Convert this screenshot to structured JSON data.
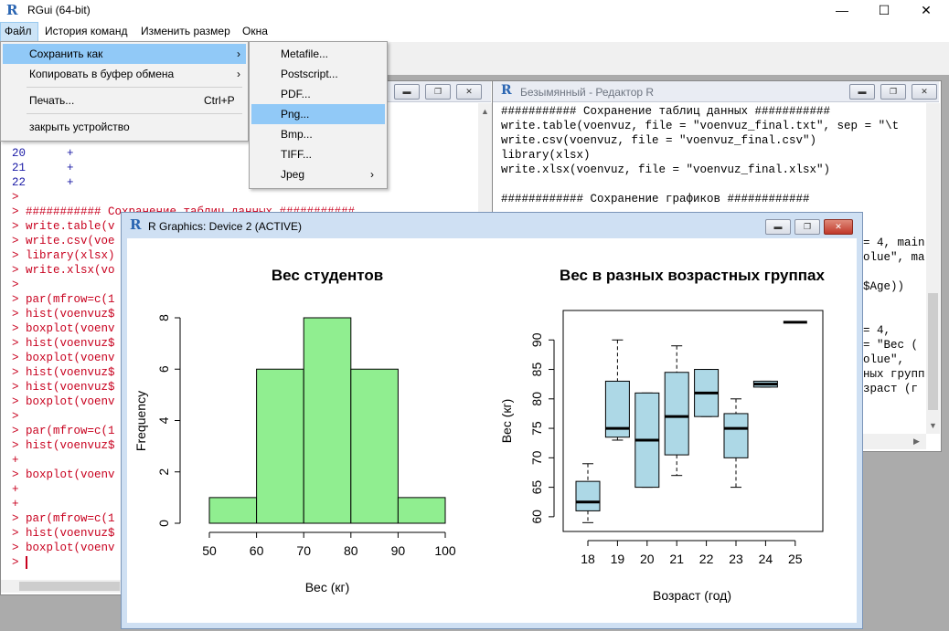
{
  "app": {
    "title": "RGui (64-bit)",
    "logo": "R"
  },
  "window_controls": {
    "minimize": "—",
    "maximize": "☐",
    "close": "✕"
  },
  "menubar": [
    "Файл",
    "История команд",
    "Изменить размер",
    "Окна"
  ],
  "file_menu": {
    "items": [
      {
        "label": "Сохранить как",
        "arrow": "›"
      },
      {
        "label": "Копировать в буфер обмена",
        "arrow": "›"
      },
      {
        "label": "Печать...",
        "shortcut": "Ctrl+P"
      },
      {
        "label": "закрыть устройство"
      }
    ]
  },
  "saveas_menu": {
    "items": [
      "Metafile...",
      "Postscript...",
      "PDF...",
      "Png...",
      "Bmp...",
      "TIFF...",
      "Jpeg"
    ],
    "jpeg_arrow": "›",
    "highlighted": "Png..."
  },
  "console": {
    "lines": [
      {
        "t": "20      +",
        "c": "blue"
      },
      {
        "t": "21      +",
        "c": "blue"
      },
      {
        "t": "22      +",
        "c": "blue"
      },
      {
        "t": ">",
        "c": "red"
      },
      {
        "t": "> ########### Сохранение таблиц данных ###########",
        "c": "red"
      },
      {
        "t": "> write.table(v",
        "c": "red"
      },
      {
        "t": "> write.csv(voe",
        "c": "red"
      },
      {
        "t": "> library(xlsx)",
        "c": "red"
      },
      {
        "t": "> write.xlsx(vo",
        "c": "red"
      },
      {
        "t": ">",
        "c": "red"
      },
      {
        "t": "> par(mfrow=c(1",
        "c": "red"
      },
      {
        "t": "> hist(voenvuz$",
        "c": "red"
      },
      {
        "t": "> boxplot(voenv",
        "c": "red"
      },
      {
        "t": "> hist(voenvuz$",
        "c": "red"
      },
      {
        "t": "> boxplot(voenv",
        "c": "red"
      },
      {
        "t": "> hist(voenvuz$",
        "c": "red"
      },
      {
        "t": "> hist(voenvuz$",
        "c": "red"
      },
      {
        "t": "> boxplot(voenv",
        "c": "red"
      },
      {
        "t": ">",
        "c": "red"
      },
      {
        "t": "> par(mfrow=c(1",
        "c": "red"
      },
      {
        "t": "> hist(voenvuz$",
        "c": "red"
      },
      {
        "t": "+",
        "c": "red"
      },
      {
        "t": "> boxplot(voenv",
        "c": "red"
      },
      {
        "t": "+",
        "c": "red"
      },
      {
        "t": "+",
        "c": "red"
      },
      {
        "t": "> par(mfrow=c(1",
        "c": "red"
      },
      {
        "t": "> hist(voenvuz$",
        "c": "red"
      },
      {
        "t": "> boxplot(voenv",
        "c": "red"
      },
      {
        "t": "> ",
        "c": "red"
      }
    ]
  },
  "editor": {
    "title": "Безымянный - Редактор R",
    "lines": [
      "########### Сохранение таблиц данных ###########",
      "write.table(voenvuz, file = \"voenvuz_final.txt\", sep = \"\\t",
      "write.csv(voenvuz, file = \"voenvuz_final.csv\")",
      "library(xlsx)",
      "write.xlsx(voenvuz, file = \"voenvuz_final.xlsx\")",
      "",
      "############ Сохранение графиков ############"
    ],
    "right_fragments": [
      "= 4, main",
      "olue\", ma",
      "",
      "$Age))",
      "",
      "",
      "= 4,",
      "= \"Вес (",
      "olue\",",
      "ных групп",
      "зраст (г"
    ]
  },
  "graphics": {
    "title": "R Graphics: Device 2 (ACTIVE)"
  },
  "chart_data": [
    {
      "type": "bar",
      "title": "Вес студентов",
      "xlabel": "Вес (кг)",
      "ylabel": "Frequency",
      "bins": [
        [
          50,
          60
        ],
        [
          60,
          70
        ],
        [
          70,
          80
        ],
        [
          80,
          90
        ],
        [
          90,
          100
        ]
      ],
      "values": [
        1,
        6,
        8,
        6,
        1
      ],
      "xticks": [
        "50",
        "60",
        "70",
        "80",
        "90",
        "100"
      ],
      "yticks": [
        "0",
        "2",
        "4",
        "6",
        "8"
      ],
      "xlim": [
        50,
        100
      ],
      "ylim": [
        0,
        8
      ],
      "color": "#90ee90"
    },
    {
      "type": "boxplot",
      "title": "Вес в разных возрастных группах",
      "xlabel": "Возраст (год)",
      "ylabel": "Вес (кг)",
      "categories": [
        "18",
        "19",
        "20",
        "21",
        "22",
        "23",
        "24",
        "25"
      ],
      "boxes": [
        {
          "min": 59,
          "q1": 61,
          "median": 62.5,
          "q3": 66,
          "max": 69
        },
        {
          "min": 73,
          "q1": 73.5,
          "median": 75,
          "q3": 83,
          "max": 90
        },
        {
          "min": 65,
          "q1": 65,
          "median": 73,
          "q3": 81,
          "max": 81
        },
        {
          "min": 67,
          "q1": 70.5,
          "median": 77,
          "q3": 84.5,
          "max": 89
        },
        {
          "min": 77,
          "q1": 77,
          "median": 81,
          "q3": 85,
          "max": 85
        },
        {
          "min": 65,
          "q1": 70,
          "median": 75,
          "q3": 77.5,
          "max": 80
        },
        {
          "min": 82,
          "q1": 82,
          "median": 82.5,
          "q3": 83,
          "max": 83
        },
        {
          "min": 93,
          "q1": 93,
          "median": 93,
          "q3": 93,
          "max": 93
        }
      ],
      "yticks": [
        "60",
        "65",
        "70",
        "75",
        "80",
        "85",
        "90"
      ],
      "ylim": [
        57.5,
        95
      ],
      "color": "#add8e6"
    }
  ]
}
